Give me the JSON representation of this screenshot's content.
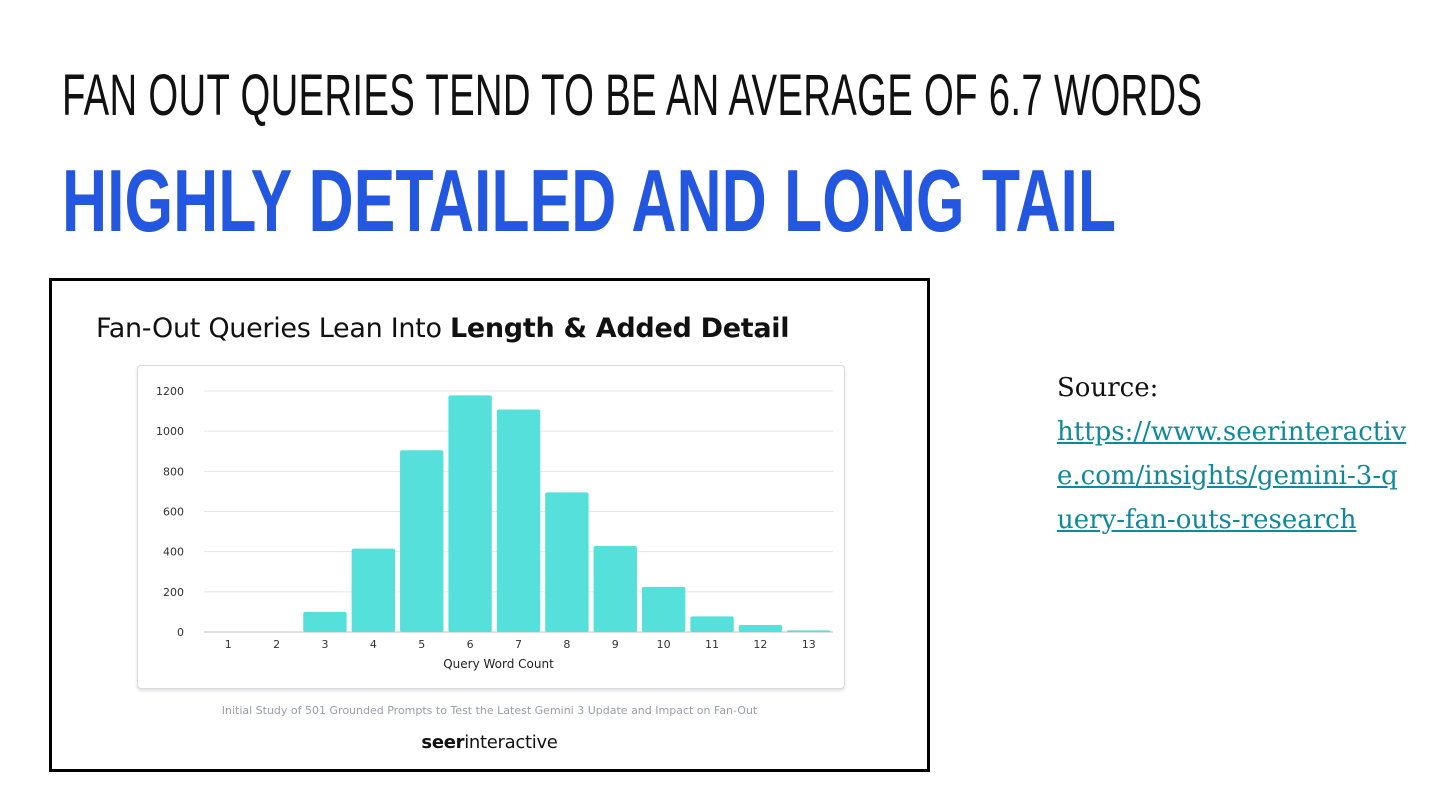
{
  "slide": {
    "headline": "FAN OUT QUERIES TEND TO BE AN AVERAGE OF 6.7 WORDS",
    "subhead": "HIGHLY DETAILED AND LONG TAIL",
    "source_label": "Source:",
    "source_url": "https://www.seerinteractive.com/insights/gemini-3-query-fan-outs-research"
  },
  "colors": {
    "accent": "#2357e0",
    "bar": "#55e0dc",
    "link": "#0f8a9c"
  },
  "chart_data": {
    "type": "bar",
    "title_regular": "Fan-Out Queries Lean Into ",
    "title_bold": "Length & Added Detail",
    "categories": [
      "1",
      "2",
      "3",
      "4",
      "5",
      "6",
      "7",
      "8",
      "9",
      "10",
      "11",
      "12",
      "13"
    ],
    "values": [
      0,
      0,
      100,
      415,
      905,
      1178,
      1108,
      695,
      428,
      225,
      78,
      35,
      8
    ],
    "xlabel": "Query Word Count",
    "ylabel": "",
    "ylim": [
      0,
      1200
    ],
    "yticks": [
      0,
      200,
      400,
      600,
      800,
      1000,
      1200
    ],
    "grid": true,
    "footnote": "Initial Study of 501 Grounded Prompts to Test the Latest Gemini 3 Update and Impact on Fan-Out",
    "brand_bold": "seer",
    "brand_regular": "interactive"
  }
}
